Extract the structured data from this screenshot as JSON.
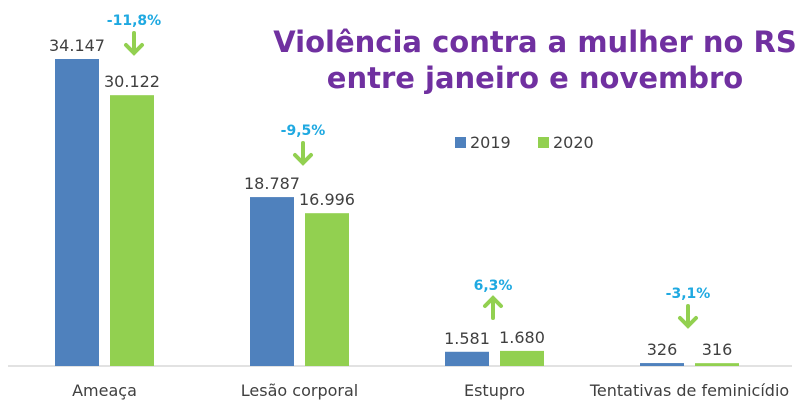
{
  "chart_data": {
    "type": "bar",
    "title_lines": [
      "Violência contra a mulher no RS",
      "entre janeiro e novembro"
    ],
    "categories": [
      "Ameaça",
      "Lesão corporal",
      "Estupro",
      "Tentativas de feminicídio"
    ],
    "series": [
      {
        "name": "2019",
        "values": [
          34147,
          18787,
          1581,
          326
        ],
        "labels": [
          "34.147",
          "18.787",
          "1.581",
          "326"
        ],
        "color": "#4f81bd"
      },
      {
        "name": "2020",
        "values": [
          30122,
          16996,
          1680,
          316
        ],
        "labels": [
          "30.122",
          "16.996",
          "1.680",
          "316"
        ],
        "color": "#92d050"
      }
    ],
    "changes": [
      {
        "label": "-11,8%",
        "direction": "down"
      },
      {
        "label": "-9,5%",
        "direction": "down"
      },
      {
        "label": "6,3%",
        "direction": "up"
      },
      {
        "label": "-3,1%",
        "direction": "down"
      }
    ],
    "legend_placement": "center-right",
    "grid": false,
    "y_axis_visible": false,
    "colors": {
      "title": "#7030a0",
      "change_label": "#1fa9e1",
      "arrow": "#92d050",
      "text": "#404040",
      "axis": "#d9d9d9"
    }
  }
}
